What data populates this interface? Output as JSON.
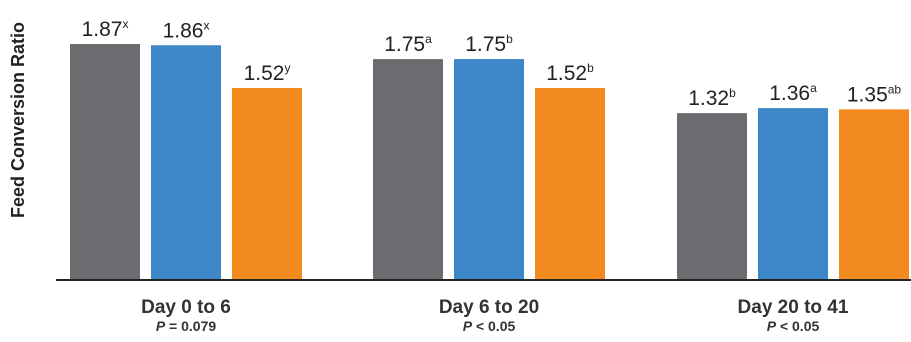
{
  "chart_data": {
    "type": "bar",
    "ylabel": "Feed Conversion Ratio",
    "categories": [
      "Day 0 to 6",
      "Day 6 to 20",
      "Day 20 to 41"
    ],
    "p_values": [
      {
        "symbol": "P",
        "text": " = 0.079"
      },
      {
        "symbol": "P",
        "text": " < 0.05"
      },
      {
        "symbol": "P",
        "text": " < 0.05"
      }
    ],
    "series": [
      {
        "color": "#6b6c6f",
        "values": [
          1.87,
          1.75,
          1.32
        ],
        "labels": [
          "1.87",
          "1.75",
          "1.32"
        ],
        "superscripts": [
          "x",
          "a",
          "b"
        ]
      },
      {
        "color": "#3d87c9",
        "values": [
          1.86,
          1.75,
          1.36
        ],
        "labels": [
          "1.86",
          "1.75",
          "1.36"
        ],
        "superscripts": [
          "x",
          "b",
          "a"
        ]
      },
      {
        "color": "#f28a20",
        "values": [
          1.52,
          1.52,
          1.35
        ],
        "labels": [
          "1.52",
          "1.52",
          "1.35"
        ],
        "superscripts": [
          "y",
          "b",
          "ab"
        ]
      }
    ],
    "ylim": [
      0,
      1.87
    ],
    "grid": false,
    "legend": "none"
  }
}
